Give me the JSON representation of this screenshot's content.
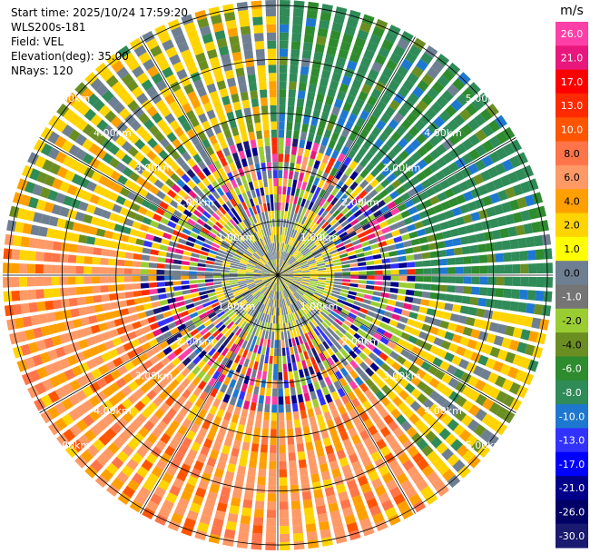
{
  "header": {
    "start_time": "Start time: 2025/10/24 17:59:20",
    "instrument": "WLS200s-181",
    "field": "Field: VEL",
    "elevation": "Elevation(deg): 35.00",
    "nrays": "NRays: 120"
  },
  "colorbar": {
    "unit": "m/s",
    "ticks": [
      "26.0",
      "21.0",
      "17.0",
      "13.0",
      "10.0",
      "8.0",
      "6.0",
      "4.0",
      "2.0",
      "1.0",
      "0.0",
      "-1.0",
      "-2.0",
      "-4.0",
      "-6.0",
      "-8.0",
      "-10.0",
      "-13.0",
      "-17.0",
      "-21.0",
      "-26.0",
      "-30.0"
    ],
    "colors": [
      "#ff3fa8",
      "#e8177d",
      "#ff0000",
      "#ff2a00",
      "#ff5500",
      "#ff7448",
      "#ff9966",
      "#ffa000",
      "#ffd400",
      "#ffff00",
      "#6e7f92",
      "#757575",
      "#9acd32",
      "#6b8e23",
      "#2e8b2e",
      "#2f8b57",
      "#1e78d0",
      "#3232ff",
      "#0000ff",
      "#00008b",
      "#000066",
      "#1a1a70"
    ]
  },
  "chart_data": {
    "type": "heatmap",
    "title": "",
    "nrays": 120,
    "range_ring_labels_km": [
      "1.00km",
      "2.00km",
      "3.00km",
      "4.00km",
      "5.00km"
    ],
    "range_rings_km": [
      1,
      2,
      3,
      4,
      5
    ],
    "max_range_km": 5.1,
    "sectors": [
      {
        "from_deg": 0,
        "to_deg": 100,
        "outer_class": "negative",
        "dominant": [
          -6,
          -4,
          -2
        ]
      },
      {
        "from_deg": 100,
        "to_deg": 140,
        "outer_class": "mixed",
        "dominant": [
          -2,
          0,
          -6
        ]
      },
      {
        "from_deg": 140,
        "to_deg": 280,
        "outer_class": "positive",
        "dominant": [
          4,
          6,
          8
        ]
      },
      {
        "from_deg": 280,
        "to_deg": 360,
        "outer_class": "mixed",
        "dominant": [
          2,
          0,
          -2
        ]
      }
    ],
    "inner_field": "near-zero (0.0 to 2.0 m/s) within 2 km"
  }
}
